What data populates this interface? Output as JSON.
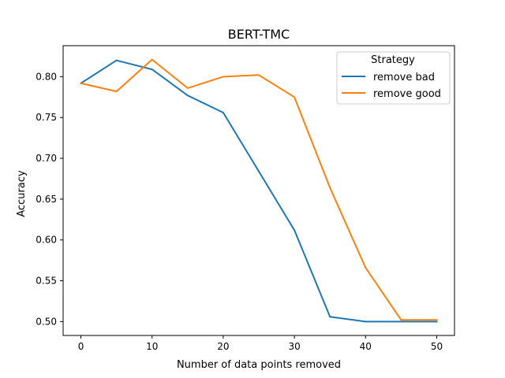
{
  "chart_data": {
    "type": "line",
    "title": "BERT-TMC",
    "xlabel": "Number of data points removed",
    "ylabel": "Accuracy",
    "xlim": [
      -2.5,
      52.5
    ],
    "ylim": [
      0.483,
      0.838
    ],
    "xticks": [
      0,
      10,
      20,
      30,
      40,
      50
    ],
    "xtick_labels": [
      "0",
      "10",
      "20",
      "30",
      "40",
      "50"
    ],
    "yticks": [
      0.5,
      0.55,
      0.6,
      0.65,
      0.7,
      0.75,
      0.8
    ],
    "ytick_labels": [
      "0.50",
      "0.55",
      "0.60",
      "0.65",
      "0.70",
      "0.75",
      "0.80"
    ],
    "grid": false,
    "legend": {
      "title": "Strategy",
      "placement": "upper-right"
    },
    "x": [
      0,
      5,
      10,
      15,
      20,
      25,
      30,
      35,
      40,
      45,
      50
    ],
    "series": [
      {
        "name": "remove bad",
        "color": "#1f77b4",
        "values": [
          0.792,
          0.82,
          0.809,
          0.777,
          0.756,
          0.684,
          0.612,
          0.506,
          0.5,
          0.5,
          0.5
        ]
      },
      {
        "name": "remove good",
        "color": "#ff7f0e",
        "values": [
          0.792,
          0.782,
          0.821,
          0.786,
          0.8,
          0.802,
          0.775,
          0.664,
          0.566,
          0.502,
          0.502
        ]
      }
    ]
  }
}
